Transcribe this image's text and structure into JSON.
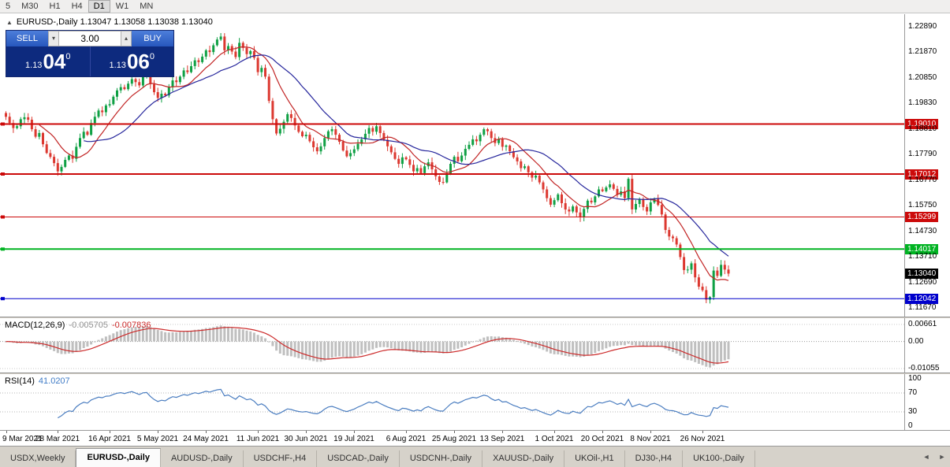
{
  "toolbar": {
    "periods": [
      "5",
      "M30",
      "H1",
      "H4",
      "D1",
      "W1",
      "MN"
    ],
    "active": "D1"
  },
  "chart": {
    "title": "EURUSD-,Daily 1.13047 1.13058 1.13038 1.13040"
  },
  "icons": {
    "collapse": "▲",
    "spin_up": "▴",
    "spin_down": "▾",
    "nav_left": "◄",
    "nav_right": "►"
  },
  "trade_panel": {
    "sell_label": "SELL",
    "buy_label": "BUY",
    "volume": "3.00",
    "sell_price": {
      "prefix": "1.13",
      "big": "04",
      "sup": "0"
    },
    "buy_price": {
      "prefix": "1.13",
      "big": "06",
      "sup": "0"
    }
  },
  "price_axis": {
    "labels": [
      "1.22890",
      "1.21870",
      "1.20850",
      "1.19830",
      "1.18810",
      "1.17790",
      "1.16770",
      "1.15750",
      "1.14730",
      "1.13710",
      "1.12690",
      "1.11670"
    ]
  },
  "hlines": [
    {
      "label": "1.19010",
      "price": 1.1901,
      "color": "#cc0a0a",
      "width": 2
    },
    {
      "label": "1.17012",
      "price": 1.17012,
      "color": "#cc0a0a",
      "width": 2
    },
    {
      "label": "1.15299",
      "price": 1.15299,
      "color": "#cc0a0a",
      "width": 1
    },
    {
      "label": "1.14017",
      "price": 1.14017,
      "color": "#00b322",
      "width": 2
    },
    {
      "label": "1.12042",
      "price": 1.12042,
      "color": "#0000cc",
      "width": 1
    }
  ],
  "current_price": {
    "label": "1.13040",
    "price": 1.1304,
    "bg": "#000000"
  },
  "macd": {
    "label": "MACD(12,26,9)",
    "value_main": "-0.005705",
    "value_signal": "-0.007836",
    "axis": {
      "top": "0.00661",
      "mid": "0.00",
      "bottom": "-0.01055"
    },
    "range": {
      "max": 0.00661,
      "min": -0.01055
    }
  },
  "rsi": {
    "label": "RSI(14)",
    "value": "41.0207",
    "axis": [
      {
        "text": "100",
        "value": 100
      },
      {
        "text": "70",
        "value": 70
      },
      {
        "text": "30",
        "value": 30
      },
      {
        "text": "0",
        "value": 0
      }
    ],
    "levels": [
      70,
      30
    ]
  },
  "time_axis": {
    "labels": [
      "9 Mar 2021",
      "28 Mar 2021",
      "16 Apr 2021",
      "5 May 2021",
      "24 May 2021",
      "11 Jun 2021",
      "30 Jun 2021",
      "19 Jul 2021",
      "6 Aug 2021",
      "25 Aug 2021",
      "13 Sep 2021",
      "1 Oct 2021",
      "20 Oct 2021",
      "8 Nov 2021",
      "26 Nov 2021"
    ]
  },
  "tabs": {
    "items": [
      {
        "label": "USDX,Weekly",
        "active": false
      },
      {
        "label": "EURUSD-,Daily",
        "active": true
      },
      {
        "label": "AUDUSD-,Daily",
        "active": false
      },
      {
        "label": "USDCHF-,H4",
        "active": false
      },
      {
        "label": "USDCAD-,Daily",
        "active": false
      },
      {
        "label": "USDCNH-,Daily",
        "active": false
      },
      {
        "label": "XAUUSD-,Daily",
        "active": false
      },
      {
        "label": "UKOil-,H1",
        "active": false
      },
      {
        "label": "DJ30-,H4",
        "active": false
      },
      {
        "label": "UK100-,Daily",
        "active": false
      }
    ]
  },
  "colors": {
    "candle_up": "#0fa044",
    "candle_down": "#dc3830",
    "ma_fast": "#c22525",
    "ma_slow": "#26269c",
    "macd_hist": "#bfbfbf",
    "macd_signal": "#cc2a2a",
    "rsi_line": "#4a7dc0"
  },
  "chart_data": {
    "type": "candlestick",
    "symbol": "EURUSD-",
    "timeframe": "Daily",
    "title": "EURUSD-,Daily",
    "ohlc_current": {
      "open": 1.13047,
      "high": 1.13058,
      "low": 1.13038,
      "close": 1.1304
    },
    "y_range": [
      1.1167,
      1.2289
    ],
    "x_labels": [
      "9 Mar 2021",
      "28 Mar 2021",
      "16 Apr 2021",
      "5 May 2021",
      "24 May 2021",
      "11 Jun 2021",
      "30 Jun 2021",
      "19 Jul 2021",
      "6 Aug 2021",
      "25 Aug 2021",
      "13 Sep 2021",
      "1 Oct 2021",
      "20 Oct 2021",
      "8 Nov 2021",
      "26 Nov 2021"
    ],
    "horizontal_lines": [
      1.1901,
      1.17012,
      1.15299,
      1.14017,
      1.12042
    ],
    "bid": 1.1304,
    "ask": 1.1306,
    "first_open": 1.1945,
    "closes": [
      1.193,
      1.1905,
      1.1885,
      1.1892,
      1.192,
      1.1928,
      1.1918,
      1.188,
      1.185,
      1.1865,
      1.182,
      1.1785,
      1.177,
      1.1745,
      1.1712,
      1.173,
      1.1758,
      1.1775,
      1.1762,
      1.181,
      1.1845,
      1.187,
      1.1858,
      1.1905,
      1.193,
      1.1955,
      1.1948,
      1.1975,
      1.198,
      1.201,
      1.2035,
      1.2048,
      1.204,
      1.2062,
      1.208,
      1.2068,
      1.2055,
      1.2088,
      1.2095,
      1.206,
      1.2028,
      1.2005,
      1.2022,
      1.2015,
      1.2048,
      1.2075,
      1.2068,
      1.209,
      1.2115,
      1.2108,
      1.2132,
      1.2155,
      1.2148,
      1.217,
      1.2195,
      1.2188,
      1.2215,
      1.2238,
      1.225,
      1.2195,
      1.2212,
      1.219,
      1.2168,
      1.2225,
      1.2205,
      1.218,
      1.2192,
      1.2165,
      1.2108,
      1.2125,
      1.209,
      1.1993,
      1.192,
      1.1863,
      1.1882,
      1.191,
      1.194,
      1.1925,
      1.1895,
      1.187,
      1.1852,
      1.1858,
      1.1832,
      1.1808,
      1.1792,
      1.1812,
      1.1845,
      1.1872,
      1.188,
      1.1858,
      1.183,
      1.1795,
      1.1772,
      1.1785,
      1.18,
      1.1822,
      1.184,
      1.1862,
      1.1885,
      1.187,
      1.1892,
      1.1865,
      1.1838,
      1.1812,
      1.1788,
      1.1762,
      1.1742,
      1.1768,
      1.176,
      1.1738,
      1.1712,
      1.1725,
      1.1705,
      1.1732,
      1.1748,
      1.172,
      1.1692,
      1.167,
      1.1668,
      1.1702,
      1.1742,
      1.177,
      1.1752,
      1.1775,
      1.1802,
      1.1818,
      1.184,
      1.1832,
      1.1858,
      1.188,
      1.1872,
      1.1845,
      1.1825,
      1.184,
      1.181,
      1.1815,
      1.1792,
      1.1768,
      1.1752,
      1.1725,
      1.1732,
      1.1708,
      1.1687,
      1.1695,
      1.1668,
      1.164,
      1.1605,
      1.1579,
      1.1597,
      1.162,
      1.1585,
      1.156,
      1.1552,
      1.1572,
      1.1548,
      1.153,
      1.1562,
      1.1595,
      1.1588,
      1.1612,
      1.164,
      1.1633,
      1.1648,
      1.166,
      1.1642,
      1.1618,
      1.1632,
      1.1605,
      1.1682,
      1.156,
      1.1582,
      1.1602,
      1.157,
      1.1552,
      1.1588,
      1.1602,
      1.1578,
      1.154,
      1.1478,
      1.1452,
      1.1445,
      1.142,
      1.137,
      1.1318,
      1.132,
      1.1345,
      1.1289,
      1.1252,
      1.1238,
      1.12,
      1.121,
      1.1316,
      1.1295,
      1.1339,
      1.132,
      1.1304
    ],
    "indicators": {
      "macd": {
        "params": "12,26,9",
        "main": -0.005705,
        "signal": -0.007836
      },
      "rsi": {
        "params": "14",
        "value": 41.0207
      }
    }
  }
}
